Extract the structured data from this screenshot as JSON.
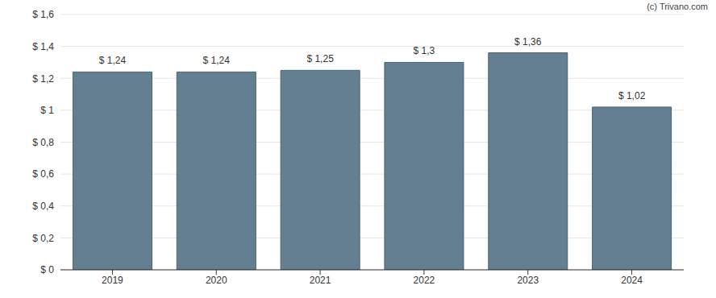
{
  "chart_data": {
    "type": "bar",
    "annotations": [
      "(c) Trivano.com"
    ],
    "categories": [
      "2019",
      "2020",
      "2021",
      "2022",
      "2023",
      "2024"
    ],
    "values": [
      1.24,
      1.24,
      1.25,
      1.3,
      1.36,
      1.02
    ],
    "value_labels": [
      "$ 1,24",
      "$ 1,24",
      "$ 1,25",
      "$ 1,3",
      "$ 1,36",
      "$ 1,02"
    ],
    "data_labels": true,
    "color": "#647f91",
    "ylim": [
      0,
      1.6
    ],
    "yticks": [
      {
        "value": 0,
        "label": "$ 0"
      },
      {
        "value": 0.2,
        "label": "$ 0,2"
      },
      {
        "value": 0.4,
        "label": "$ 0,4"
      },
      {
        "value": 0.6,
        "label": "$ 0,6"
      },
      {
        "value": 0.8,
        "label": "$ 0,8"
      },
      {
        "value": 1,
        "label": "$ 1"
      },
      {
        "value": 1.2,
        "label": "$ 1,2"
      },
      {
        "value": 1.4,
        "label": "$ 1,4"
      },
      {
        "value": 1.6,
        "label": "$ 1,6"
      }
    ],
    "grid": true
  }
}
